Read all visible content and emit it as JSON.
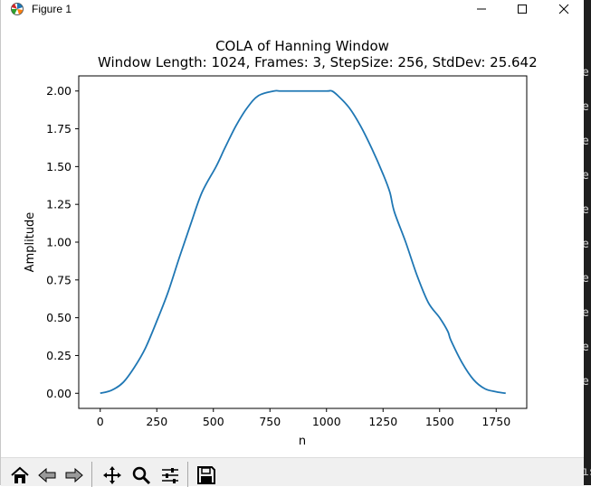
{
  "window": {
    "title": "Figure 1",
    "controls": {
      "minimize": "minimize",
      "maximize": "maximize",
      "close": "close"
    }
  },
  "toolbar": {
    "buttons": [
      "home-icon",
      "back-arrow-icon",
      "forward-arrow-icon",
      "pan-move-icon",
      "zoom-magnifier-icon",
      "configure-sliders-icon",
      "save-floppy-icon"
    ]
  },
  "right_strip_fragments": [
    "e",
    "e",
    "e",
    "e",
    "e",
    "e",
    "e",
    "e",
    "e",
    "e",
    "ıs"
  ],
  "chart_data": {
    "type": "line",
    "title": "COLA of Hanning Window",
    "subtitle": "Window Length: 1024, Frames: 3, StepSize: 256, StdDev: 25.642",
    "xlabel": "n",
    "ylabel": "Amplitude",
    "xlim": [
      -95,
      1885
    ],
    "ylim": [
      -0.1,
      2.1
    ],
    "xticks": [
      0,
      250,
      500,
      750,
      1000,
      1250,
      1500,
      1750
    ],
    "xtick_labels": [
      "0",
      "250",
      "500",
      "750",
      "1000",
      "1250",
      "1500",
      "1750"
    ],
    "yticks": [
      0.0,
      0.25,
      0.5,
      0.75,
      1.0,
      1.25,
      1.5,
      1.75,
      2.0
    ],
    "ytick_labels": [
      "0.00",
      "0.25",
      "0.50",
      "0.75",
      "1.00",
      "1.25",
      "1.50",
      "1.75",
      "2.00"
    ],
    "grid": false,
    "line_color": "#1f77b4",
    "series": [
      {
        "x": [
          0,
          50,
          100,
          150,
          200,
          256,
          300,
          350,
          400,
          450,
          512,
          550,
          600,
          650,
          700,
          768,
          800,
          900,
          1000,
          1024,
          1050,
          1100,
          1150,
          1200,
          1250,
          1280,
          1300,
          1350,
          1400,
          1450,
          1500,
          1536,
          1550,
          1600,
          1650,
          1700,
          1750,
          1792
        ],
        "y": [
          0.0,
          0.02,
          0.07,
          0.17,
          0.3,
          0.5,
          0.67,
          0.9,
          1.12,
          1.33,
          1.5,
          1.62,
          1.77,
          1.89,
          1.97,
          2.0,
          2.0,
          2.0,
          2.0,
          2.0,
          1.97,
          1.89,
          1.77,
          1.62,
          1.45,
          1.33,
          1.2,
          1.0,
          0.78,
          0.6,
          0.5,
          0.41,
          0.35,
          0.2,
          0.09,
          0.03,
          0.01,
          0.0
        ]
      }
    ]
  }
}
